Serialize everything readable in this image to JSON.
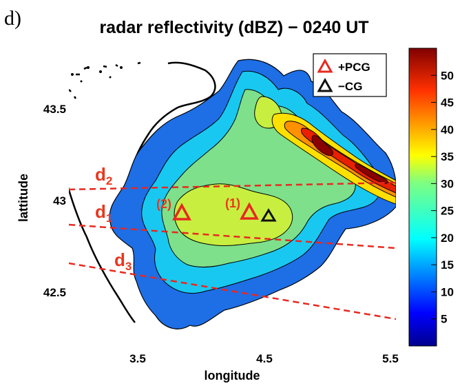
{
  "panel_label": "d)",
  "title": "radar reflectivity (dBZ) − 0240 UT",
  "xaxis": {
    "label": "longitude",
    "ticks": [
      "3.5",
      "4.5",
      "5.5"
    ]
  },
  "yaxis": {
    "label": "lattitude",
    "ticks": [
      "43.5",
      "43",
      "42.5"
    ]
  },
  "legend": [
    {
      "symbol": "red-triangle",
      "label": "+PCG",
      "color": "#e8281f"
    },
    {
      "symbol": "black-triangle",
      "label": "−CG",
      "color": "#111111"
    }
  ],
  "lines": [
    {
      "name": "d",
      "sub": "2"
    },
    {
      "name": "d",
      "sub": "1"
    },
    {
      "name": "d",
      "sub": "3"
    }
  ],
  "markers": [
    {
      "type": "+PCG",
      "label": "(2)",
      "lon": 3.88,
      "lat": 42.95
    },
    {
      "type": "+PCG",
      "label": "(1)",
      "lon": 4.38,
      "lat": 42.95
    },
    {
      "type": "-CG",
      "label": "",
      "lon": 4.53,
      "lat": 42.95
    }
  ],
  "colorbar": {
    "min": 0,
    "max": 55,
    "ticks": [
      "5",
      "10",
      "15",
      "20",
      "25",
      "30",
      "35",
      "40",
      "45",
      "50"
    ]
  },
  "colors": {
    "annotation": "#e8381f",
    "line": "#e8281f"
  }
}
